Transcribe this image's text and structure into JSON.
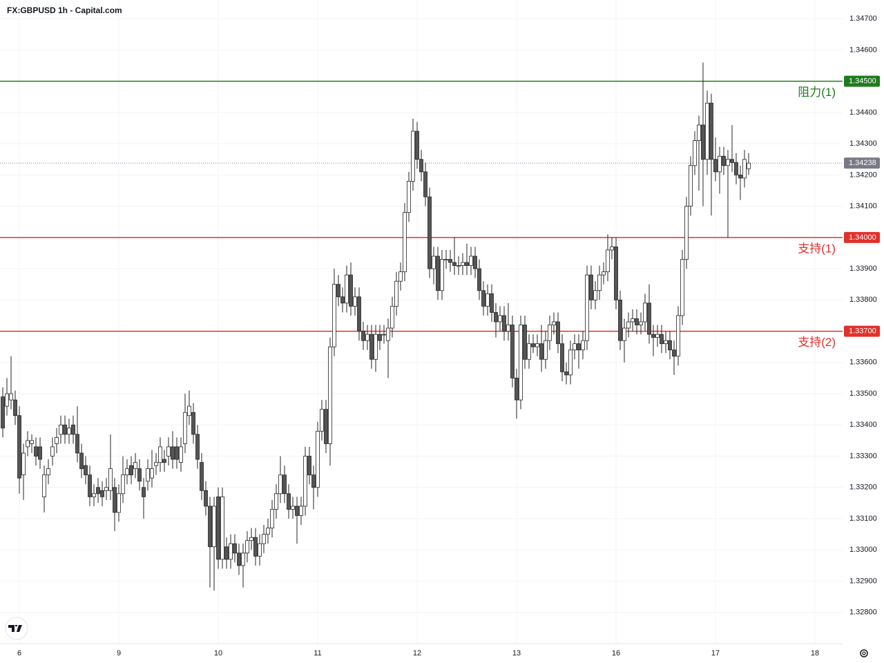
{
  "chart_data": {
    "type": "candlestick",
    "title": "FX:GBPUSD 1h - Capital.com",
    "up_color": "#ffffff",
    "down_color": "#555555",
    "wick_color": "#222222",
    "grid": true,
    "xlim": [
      -0.67,
      202.67
    ],
    "xticks": [
      {
        "value": 4,
        "label": "6"
      },
      {
        "value": 28,
        "label": "9"
      },
      {
        "value": 52,
        "label": "10"
      },
      {
        "value": 76,
        "label": "11"
      },
      {
        "value": 100,
        "label": "12"
      },
      {
        "value": 124,
        "label": "13"
      },
      {
        "value": 148,
        "label": "16"
      },
      {
        "value": 172,
        "label": "17"
      },
      {
        "value": 196,
        "label": "18"
      }
    ],
    "ylim": [
      1.327,
      1.3476
    ],
    "yticks": [
      {
        "value": 1.328,
        "label": "1.32800"
      },
      {
        "value": 1.329,
        "label": "1.32900"
      },
      {
        "value": 1.33,
        "label": "1.33000"
      },
      {
        "value": 1.331,
        "label": "1.33100"
      },
      {
        "value": 1.332,
        "label": "1.33200"
      },
      {
        "value": 1.333,
        "label": "1.33300"
      },
      {
        "value": 1.334,
        "label": "1.33400"
      },
      {
        "value": 1.335,
        "label": "1.33500"
      },
      {
        "value": 1.336,
        "label": "1.33600"
      },
      {
        "value": 1.338,
        "label": "1.33800"
      },
      {
        "value": 1.339,
        "label": "1.33900"
      },
      {
        "value": 1.341,
        "label": "1.34100"
      },
      {
        "value": 1.342,
        "label": "1.34200"
      },
      {
        "value": 1.343,
        "label": "1.34300"
      },
      {
        "value": 1.344,
        "label": "1.34400"
      },
      {
        "value": 1.346,
        "label": "1.34600"
      },
      {
        "value": 1.347,
        "label": "1.34700"
      }
    ],
    "levels": [
      {
        "name": "阻力(1)",
        "value": 1.345,
        "label": "1.34500",
        "color": "#1e7b1e"
      },
      {
        "name": "支持(1)",
        "value": 1.34,
        "label": "1.34000",
        "color": "#e0312b"
      },
      {
        "name": "支持(2)",
        "value": 1.337,
        "label": "1.33700",
        "color": "#e0312b"
      }
    ],
    "last_price": 1.34238,
    "last_price_color": "#787b86",
    "candles": [
      [
        1.3349,
        1.3352,
        1.3336,
        1.3339
      ],
      [
        1.3346,
        1.3355,
        1.3343,
        1.335
      ],
      [
        1.3348,
        1.3362,
        1.3345,
        1.335
      ],
      [
        1.3348,
        1.3351,
        1.334,
        1.3343
      ],
      [
        1.3343,
        1.3346,
        1.3318,
        1.3323
      ],
      [
        1.3324,
        1.3334,
        1.3316,
        1.3331
      ],
      [
        1.3333,
        1.3338,
        1.333,
        1.3335
      ],
      [
        1.3334,
        1.3337,
        1.3331,
        1.3335
      ],
      [
        1.3333,
        1.3336,
        1.3327,
        1.333
      ],
      [
        1.3333,
        1.3336,
        1.3326,
        1.3329
      ],
      [
        1.3317,
        1.3327,
        1.3312,
        1.3324
      ],
      [
        1.3324,
        1.3329,
        1.3321,
        1.3326
      ],
      [
        1.333,
        1.3336,
        1.3327,
        1.3333
      ],
      [
        1.3334,
        1.3339,
        1.3331,
        1.3336
      ],
      [
        1.3337,
        1.3343,
        1.3334,
        1.334
      ],
      [
        1.334,
        1.3343,
        1.3334,
        1.3337
      ],
      [
        1.3337,
        1.3342,
        1.3334,
        1.3339
      ],
      [
        1.334,
        1.3343,
        1.3334,
        1.3337
      ],
      [
        1.3337,
        1.3346,
        1.3328,
        1.3331
      ],
      [
        1.3331,
        1.3334,
        1.3323,
        1.3326
      ],
      [
        1.3327,
        1.333,
        1.3321,
        1.3324
      ],
      [
        1.3324,
        1.3327,
        1.3314,
        1.3317
      ],
      [
        1.3317,
        1.3321,
        1.3314,
        1.3318
      ],
      [
        1.332,
        1.3323,
        1.3315,
        1.3318
      ],
      [
        1.3319,
        1.3322,
        1.3314,
        1.3317
      ],
      [
        1.3319,
        1.3323,
        1.3316,
        1.332
      ],
      [
        1.3319,
        1.3337,
        1.3316,
        1.3326
      ],
      [
        1.332,
        1.3323,
        1.3306,
        1.3312
      ],
      [
        1.3312,
        1.3321,
        1.3309,
        1.3318
      ],
      [
        1.3318,
        1.333,
        1.3315,
        1.3324
      ],
      [
        1.3324,
        1.3329,
        1.3321,
        1.3326
      ],
      [
        1.3327,
        1.333,
        1.3321,
        1.3324
      ],
      [
        1.3326,
        1.3331,
        1.3323,
        1.3328
      ],
      [
        1.3326,
        1.3329,
        1.3319,
        1.3322
      ],
      [
        1.332,
        1.3323,
        1.331,
        1.3317
      ],
      [
        1.3322,
        1.3329,
        1.3319,
        1.3326
      ],
      [
        1.3323,
        1.3332,
        1.332,
        1.3326
      ],
      [
        1.3327,
        1.3331,
        1.3324,
        1.3328
      ],
      [
        1.3328,
        1.3336,
        1.3325,
        1.3333
      ],
      [
        1.3329,
        1.3332,
        1.3325,
        1.3328
      ],
      [
        1.333,
        1.3336,
        1.3327,
        1.3333
      ],
      [
        1.3333,
        1.3338,
        1.3326,
        1.3329
      ],
      [
        1.3333,
        1.3336,
        1.3326,
        1.3329
      ],
      [
        1.3328,
        1.3336,
        1.3325,
        1.3333
      ],
      [
        1.3334,
        1.335,
        1.3331,
        1.3344
      ],
      [
        1.3343,
        1.3351,
        1.334,
        1.3346
      ],
      [
        1.3344,
        1.3347,
        1.3334,
        1.3337
      ],
      [
        1.3337,
        1.334,
        1.3326,
        1.3329
      ],
      [
        1.3328,
        1.3331,
        1.3316,
        1.3319
      ],
      [
        1.3319,
        1.3322,
        1.3311,
        1.3314
      ],
      [
        1.3314,
        1.3317,
        1.3288,
        1.3301
      ],
      [
        1.3301,
        1.3317,
        1.3287,
        1.3314
      ],
      [
        1.3317,
        1.332,
        1.3294,
        1.3297
      ],
      [
        1.3297,
        1.332,
        1.3294,
        1.3317
      ],
      [
        1.3301,
        1.3304,
        1.3294,
        1.3297
      ],
      [
        1.3297,
        1.3305,
        1.3294,
        1.3302
      ],
      [
        1.3302,
        1.3305,
        1.3296,
        1.3299
      ],
      [
        1.3299,
        1.3302,
        1.3292,
        1.3295
      ],
      [
        1.3295,
        1.3302,
        1.3288,
        1.3299
      ],
      [
        1.3299,
        1.3306,
        1.3296,
        1.3303
      ],
      [
        1.3303,
        1.3307,
        1.33,
        1.3304
      ],
      [
        1.3304,
        1.3307,
        1.3295,
        1.3298
      ],
      [
        1.3298,
        1.3305,
        1.3295,
        1.3302
      ],
      [
        1.3302,
        1.3308,
        1.3299,
        1.3305
      ],
      [
        1.3305,
        1.331,
        1.3302,
        1.3307
      ],
      [
        1.3307,
        1.3316,
        1.3304,
        1.3313
      ],
      [
        1.3313,
        1.3321,
        1.331,
        1.3318
      ],
      [
        1.3318,
        1.333,
        1.3315,
        1.3324
      ],
      [
        1.3324,
        1.3327,
        1.3315,
        1.3318
      ],
      [
        1.3318,
        1.3321,
        1.331,
        1.3313
      ],
      [
        1.3313,
        1.3317,
        1.331,
        1.3314
      ],
      [
        1.3314,
        1.3317,
        1.3302,
        1.3311
      ],
      [
        1.3311,
        1.3317,
        1.3308,
        1.3314
      ],
      [
        1.3314,
        1.3333,
        1.3311,
        1.333
      ],
      [
        1.333,
        1.3333,
        1.3321,
        1.3324
      ],
      [
        1.3324,
        1.3327,
        1.3313,
        1.332
      ],
      [
        1.332,
        1.3341,
        1.3317,
        1.3338
      ],
      [
        1.3338,
        1.3348,
        1.3335,
        1.3345
      ],
      [
        1.3345,
        1.3348,
        1.3331,
        1.3334
      ],
      [
        1.3334,
        1.3368,
        1.3327,
        1.3365
      ],
      [
        1.3365,
        1.339,
        1.3362,
        1.3385
      ],
      [
        1.3385,
        1.3388,
        1.3378,
        1.3381
      ],
      [
        1.3381,
        1.3384,
        1.3376,
        1.3379
      ],
      [
        1.3379,
        1.3391,
        1.3376,
        1.3388
      ],
      [
        1.3388,
        1.3392,
        1.3375,
        1.3378
      ],
      [
        1.3378,
        1.3384,
        1.3375,
        1.3381
      ],
      [
        1.3381,
        1.3384,
        1.3367,
        1.337
      ],
      [
        1.337,
        1.3373,
        1.3364,
        1.3367
      ],
      [
        1.3367,
        1.3372,
        1.3364,
        1.3369
      ],
      [
        1.3369,
        1.3372,
        1.3358,
        1.3361
      ],
      [
        1.3361,
        1.3372,
        1.3357,
        1.3369
      ],
      [
        1.3369,
        1.3372,
        1.3364,
        1.3367
      ],
      [
        1.3369,
        1.3372,
        1.3366,
        1.3369
      ],
      [
        1.3367,
        1.3374,
        1.3355,
        1.3371
      ],
      [
        1.3371,
        1.3381,
        1.3368,
        1.3378
      ],
      [
        1.3378,
        1.3389,
        1.3375,
        1.3386
      ],
      [
        1.3386,
        1.3392,
        1.3383,
        1.3389
      ],
      [
        1.3389,
        1.3411,
        1.3386,
        1.3408
      ],
      [
        1.3408,
        1.3421,
        1.3405,
        1.3418
      ],
      [
        1.3418,
        1.3438,
        1.3415,
        1.3434
      ],
      [
        1.3434,
        1.3437,
        1.3422,
        1.3425
      ],
      [
        1.3425,
        1.3428,
        1.3418,
        1.3421
      ],
      [
        1.3421,
        1.3424,
        1.341,
        1.3413
      ],
      [
        1.3413,
        1.3416,
        1.3387,
        1.339
      ],
      [
        1.339,
        1.3397,
        1.3385,
        1.3394
      ],
      [
        1.3394,
        1.3397,
        1.338,
        1.3383
      ],
      [
        1.3383,
        1.3396,
        1.338,
        1.3393
      ],
      [
        1.3393,
        1.3396,
        1.339,
        1.3393
      ],
      [
        1.3393,
        1.3396,
        1.3389,
        1.3392
      ],
      [
        1.3392,
        1.34,
        1.3388,
        1.3391
      ],
      [
        1.3391,
        1.3394,
        1.3388,
        1.3391
      ],
      [
        1.3391,
        1.3395,
        1.3388,
        1.3392
      ],
      [
        1.3392,
        1.3398,
        1.3388,
        1.3391
      ],
      [
        1.3391,
        1.3397,
        1.3388,
        1.3394
      ],
      [
        1.3394,
        1.3397,
        1.3387,
        1.339
      ],
      [
        1.339,
        1.3393,
        1.338,
        1.3383
      ],
      [
        1.3383,
        1.3386,
        1.3375,
        1.3378
      ],
      [
        1.3378,
        1.3385,
        1.3375,
        1.3382
      ],
      [
        1.3382,
        1.3385,
        1.3373,
        1.3376
      ],
      [
        1.3376,
        1.3379,
        1.3368,
        1.3373
      ],
      [
        1.3373,
        1.3378,
        1.337,
        1.3375
      ],
      [
        1.3375,
        1.3378,
        1.3367,
        1.337
      ],
      [
        1.337,
        1.3379,
        1.3367,
        1.3372
      ],
      [
        1.3372,
        1.3375,
        1.3352,
        1.3355
      ],
      [
        1.3355,
        1.3358,
        1.3342,
        1.3348
      ],
      [
        1.3348,
        1.3375,
        1.3345,
        1.3372
      ],
      [
        1.3372,
        1.3375,
        1.3358,
        1.3361
      ],
      [
        1.3361,
        1.3369,
        1.3358,
        1.3366
      ],
      [
        1.3366,
        1.3369,
        1.3363,
        1.3365
      ],
      [
        1.3365,
        1.3369,
        1.3362,
        1.3366
      ],
      [
        1.3366,
        1.3372,
        1.3357,
        1.3361
      ],
      [
        1.3361,
        1.337,
        1.3358,
        1.3367
      ],
      [
        1.3367,
        1.3375,
        1.3364,
        1.3372
      ],
      [
        1.3372,
        1.3376,
        1.3369,
        1.3373
      ],
      [
        1.3373,
        1.3376,
        1.3363,
        1.3366
      ],
      [
        1.3366,
        1.3369,
        1.3354,
        1.3357
      ],
      [
        1.3357,
        1.336,
        1.3353,
        1.3356
      ],
      [
        1.3356,
        1.3367,
        1.3353,
        1.3364
      ],
      [
        1.3364,
        1.3369,
        1.3361,
        1.3366
      ],
      [
        1.3366,
        1.3369,
        1.3358,
        1.3364
      ],
      [
        1.3364,
        1.337,
        1.3361,
        1.3367
      ],
      [
        1.3367,
        1.3391,
        1.3364,
        1.3388
      ],
      [
        1.3388,
        1.3391,
        1.3377,
        1.338
      ],
      [
        1.338,
        1.3386,
        1.3377,
        1.3383
      ],
      [
        1.3383,
        1.3391,
        1.338,
        1.3388
      ],
      [
        1.3388,
        1.3392,
        1.3385,
        1.3389
      ],
      [
        1.3389,
        1.3401,
        1.3386,
        1.3396
      ],
      [
        1.3396,
        1.34,
        1.3393,
        1.3397
      ],
      [
        1.3397,
        1.34,
        1.3377,
        1.338
      ],
      [
        1.338,
        1.3383,
        1.3364,
        1.3367
      ],
      [
        1.3367,
        1.3374,
        1.336,
        1.3371
      ],
      [
        1.3371,
        1.3376,
        1.3368,
        1.3373
      ],
      [
        1.3373,
        1.3377,
        1.337,
        1.3374
      ],
      [
        1.3374,
        1.3377,
        1.3369,
        1.3372
      ],
      [
        1.3372,
        1.3376,
        1.3369,
        1.3373
      ],
      [
        1.3373,
        1.3382,
        1.337,
        1.3379
      ],
      [
        1.3379,
        1.3385,
        1.3366,
        1.3369
      ],
      [
        1.3369,
        1.3372,
        1.3362,
        1.3368
      ],
      [
        1.3368,
        1.3372,
        1.3365,
        1.3369
      ],
      [
        1.3369,
        1.3372,
        1.3363,
        1.3366
      ],
      [
        1.3366,
        1.337,
        1.3363,
        1.3367
      ],
      [
        1.3367,
        1.337,
        1.3361,
        1.3364
      ],
      [
        1.3364,
        1.3367,
        1.3356,
        1.3362
      ],
      [
        1.3362,
        1.3378,
        1.3359,
        1.3375
      ],
      [
        1.3375,
        1.3396,
        1.3372,
        1.3393
      ],
      [
        1.3393,
        1.3413,
        1.339,
        1.341
      ],
      [
        1.341,
        1.3426,
        1.3407,
        1.3423
      ],
      [
        1.3423,
        1.3434,
        1.342,
        1.3431
      ],
      [
        1.3431,
        1.3439,
        1.3415,
        1.3436
      ],
      [
        1.3436,
        1.3456,
        1.341,
        1.3425
      ],
      [
        1.3425,
        1.3447,
        1.342,
        1.3443
      ],
      [
        1.3443,
        1.3446,
        1.3407,
        1.3425
      ],
      [
        1.3425,
        1.3432,
        1.3418,
        1.3421
      ],
      [
        1.3421,
        1.3429,
        1.3414,
        1.3426
      ],
      [
        1.3426,
        1.3429,
        1.342,
        1.3423
      ],
      [
        1.3423,
        1.3428,
        1.34,
        1.3425
      ],
      [
        1.3425,
        1.3436,
        1.3421,
        1.3424
      ],
      [
        1.3424,
        1.3427,
        1.3417,
        1.342
      ],
      [
        1.342,
        1.3423,
        1.3412,
        1.3419
      ],
      [
        1.3419,
        1.3428,
        1.3416,
        1.3425
      ],
      [
        1.3422,
        1.3427,
        1.342,
        1.34238
      ]
    ]
  }
}
